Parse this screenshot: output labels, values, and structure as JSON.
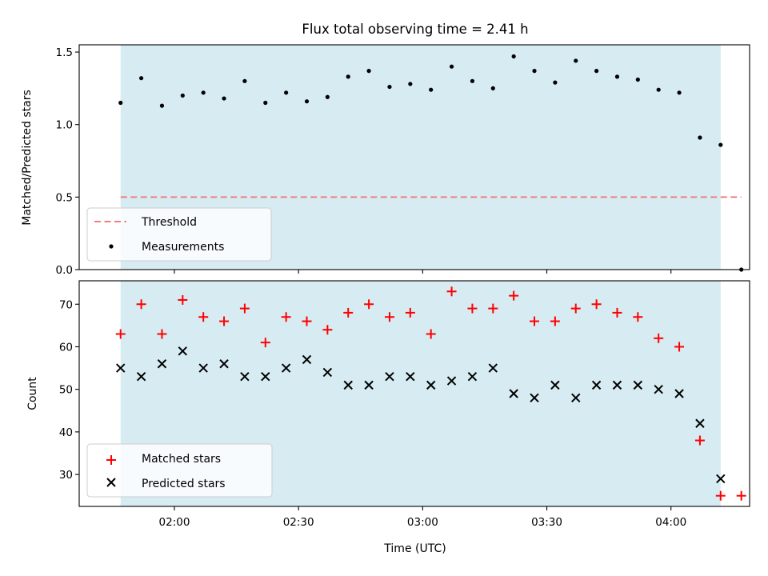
{
  "chart_data": [
    {
      "type": "scatter",
      "title": "Flux total observing time = 2.41 h",
      "xlabel": "",
      "ylabel": "Matched/Predicted stars",
      "ylim": [
        0,
        1.55
      ],
      "yticks": [
        0,
        0.5,
        1.0,
        1.5
      ],
      "ytick_labels": [
        "0.0",
        "0.5",
        "1.0",
        "1.5"
      ],
      "shaded_range": {
        "x_start": "01:47",
        "x_end": "04:12",
        "color": "#add8e6"
      },
      "threshold": {
        "name": "Threshold",
        "value": 0.5,
        "x_start": "01:47",
        "x_end": "04:17",
        "color": "#f08080",
        "style": "dashed"
      },
      "series": [
        {
          "name": "Measurements",
          "marker": "dot",
          "color": "#000000",
          "x": [
            "01:47",
            "01:52",
            "01:57",
            "02:02",
            "02:07",
            "02:12",
            "02:17",
            "02:22",
            "02:27",
            "02:32",
            "02:37",
            "02:42",
            "02:47",
            "02:52",
            "02:57",
            "03:02",
            "03:07",
            "03:12",
            "03:17",
            "03:22",
            "03:27",
            "03:32",
            "03:37",
            "03:42",
            "03:47",
            "03:52",
            "03:57",
            "04:02",
            "04:07",
            "04:12",
            "04:17"
          ],
          "values": [
            1.15,
            1.32,
            1.13,
            1.2,
            1.22,
            1.18,
            1.3,
            1.15,
            1.22,
            1.16,
            1.19,
            1.33,
            1.37,
            1.26,
            1.28,
            1.24,
            1.4,
            1.3,
            1.25,
            1.47,
            1.37,
            1.29,
            1.44,
            1.37,
            1.33,
            1.31,
            1.24,
            1.22,
            0.91,
            0.86,
            0.0
          ]
        }
      ],
      "legend": {
        "location": "lower-left",
        "entries": [
          "Threshold",
          "Measurements"
        ]
      }
    },
    {
      "type": "scatter",
      "title": "",
      "xlabel": "Time (UTC)",
      "ylabel": "Count",
      "ylim": [
        22.5,
        75.5
      ],
      "yticks": [
        30,
        40,
        50,
        60,
        70
      ],
      "ytick_labels": [
        "30",
        "40",
        "50",
        "60",
        "70"
      ],
      "xticks": [
        "02:00",
        "02:30",
        "03:00",
        "03:30",
        "04:00"
      ],
      "shaded_range": {
        "x_start": "01:47",
        "x_end": "04:12",
        "color": "#add8e6"
      },
      "series": [
        {
          "name": "Matched stars",
          "marker": "plus",
          "color": "#ff0000",
          "x": [
            "01:47",
            "01:52",
            "01:57",
            "02:02",
            "02:07",
            "02:12",
            "02:17",
            "02:22",
            "02:27",
            "02:32",
            "02:37",
            "02:42",
            "02:47",
            "02:52",
            "02:57",
            "03:02",
            "03:07",
            "03:12",
            "03:17",
            "03:22",
            "03:27",
            "03:32",
            "03:37",
            "03:42",
            "03:47",
            "03:52",
            "03:57",
            "04:02",
            "04:07",
            "04:12",
            "04:17"
          ],
          "values": [
            63,
            70,
            63,
            71,
            67,
            66,
            69,
            61,
            67,
            66,
            64,
            68,
            70,
            67,
            68,
            63,
            73,
            69,
            69,
            72,
            66,
            66,
            69,
            70,
            68,
            67,
            62,
            60,
            38,
            25,
            25
          ]
        },
        {
          "name": "Predicted stars",
          "marker": "x",
          "color": "#000000",
          "x": [
            "01:47",
            "01:52",
            "01:57",
            "02:02",
            "02:07",
            "02:12",
            "02:17",
            "02:22",
            "02:27",
            "02:32",
            "02:37",
            "02:42",
            "02:47",
            "02:52",
            "02:57",
            "03:02",
            "03:07",
            "03:12",
            "03:17",
            "03:22",
            "03:27",
            "03:32",
            "03:37",
            "03:42",
            "03:47",
            "03:52",
            "03:57",
            "04:02",
            "04:07",
            "04:12"
          ],
          "values": [
            55,
            53,
            56,
            59,
            55,
            56,
            53,
            53,
            55,
            57,
            54,
            51,
            51,
            53,
            53,
            51,
            52,
            53,
            55,
            49,
            48,
            51,
            48,
            51,
            51,
            51,
            50,
            49,
            42,
            29
          ]
        }
      ],
      "legend": {
        "location": "lower-left",
        "entries": [
          "Matched stars",
          "Predicted stars"
        ]
      }
    }
  ]
}
